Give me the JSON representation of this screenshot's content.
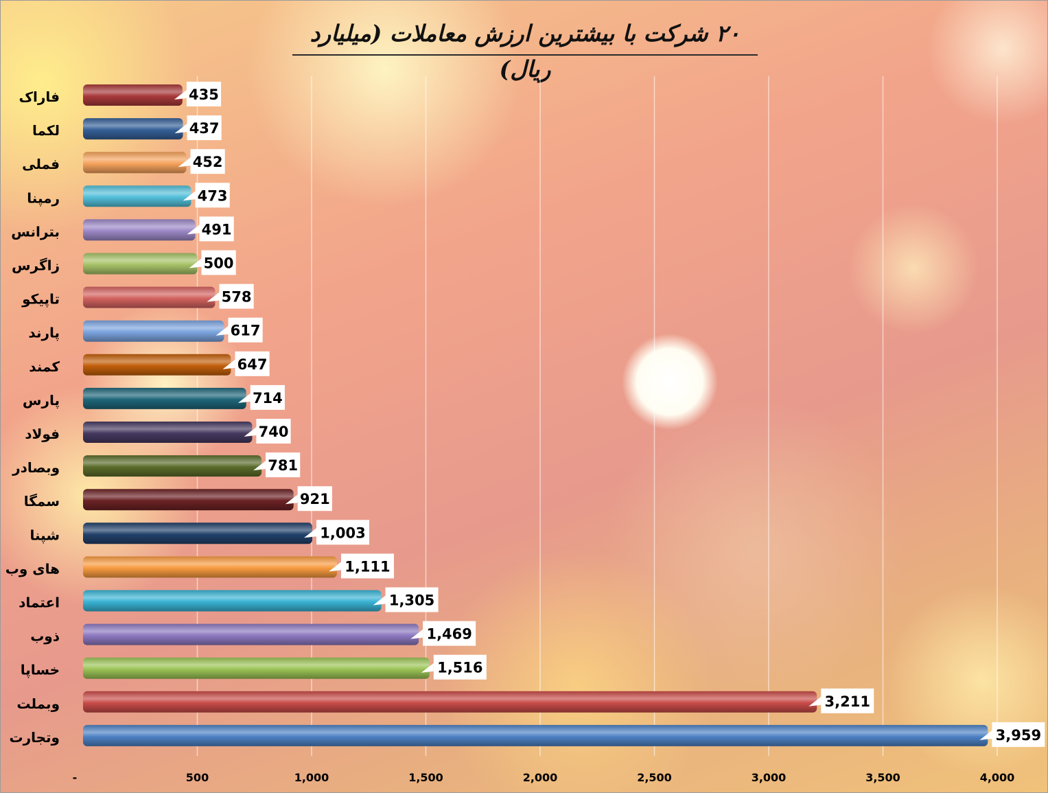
{
  "chart_data": {
    "type": "bar",
    "orientation": "horizontal",
    "title": "۲۰ شرکت با بیشترین ارزش معاملات (میلیارد ریال)",
    "categories": [
      "فاراک",
      "لکما",
      "فملی",
      "رمپنا",
      "بترانس",
      "زاگرس",
      "تاپیکو",
      "پارند",
      "کمند",
      "پارس",
      "فولاد",
      "وبصادر",
      "سمگا",
      "شپنا",
      "های وب",
      "اعتماد",
      "ذوب",
      "خساپا",
      "وبملت",
      "وتجارت"
    ],
    "values": [
      435,
      437,
      452,
      473,
      491,
      500,
      578,
      617,
      647,
      714,
      740,
      781,
      921,
      1003,
      1111,
      1305,
      1469,
      1516,
      3211,
      3959
    ],
    "value_labels": [
      "435",
      "437",
      "452",
      "473",
      "491",
      "500",
      "578",
      "617",
      "647",
      "714",
      "740",
      "781",
      "921",
      "1,003",
      "1,111",
      "1,305",
      "1,469",
      "1,516",
      "3,211",
      "3,959"
    ],
    "colors": [
      "#a8393a",
      "#355f97",
      "#f5a25c",
      "#52bfd9",
      "#9b87c6",
      "#a6c267",
      "#d2625f",
      "#7aa3de",
      "#c25f0b",
      "#1f6679",
      "#45395f",
      "#5a6c2a",
      "#6b2224",
      "#22416a",
      "#f79a3f",
      "#39b3d4",
      "#8c78c0",
      "#9bc356",
      "#c84b48",
      "#4d81c4"
    ],
    "xlim": [
      0,
      4000
    ],
    "xticks": [
      0,
      500,
      1000,
      1500,
      2000,
      2500,
      3000,
      3500,
      4000
    ],
    "xtick_labels": [
      "-",
      "500",
      "1,000",
      "1,500",
      "2,000",
      "2,500",
      "3,000",
      "3,500",
      "4,000"
    ],
    "grid": true,
    "legend": "none"
  }
}
